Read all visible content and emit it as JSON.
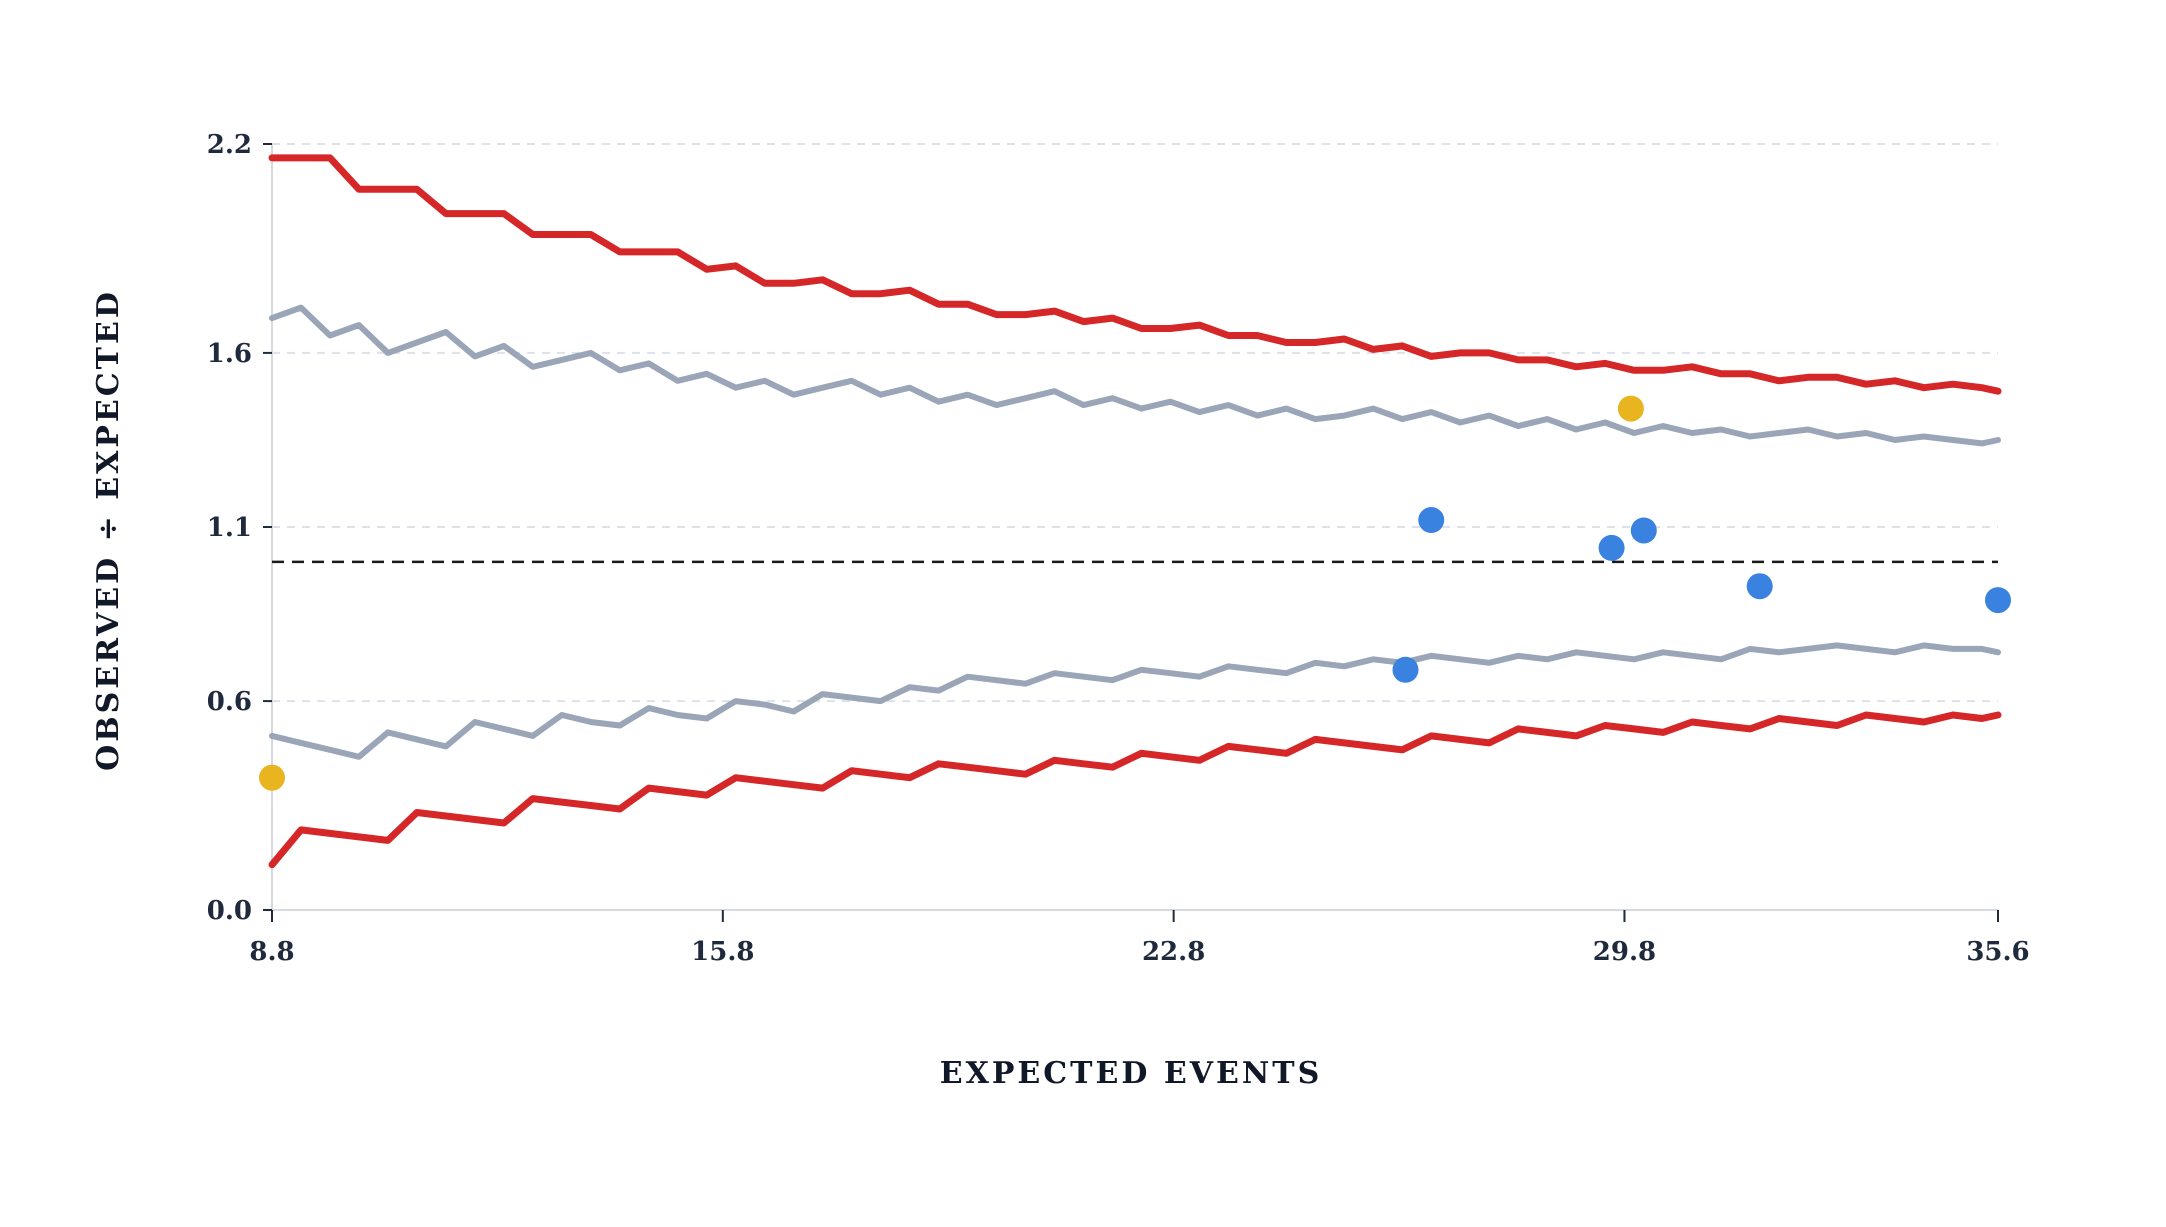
{
  "chart_data": {
    "type": "line",
    "title": "",
    "xlabel": "EXPECTED EVENTS",
    "ylabel": "OBSERVED ÷ EXPECTED",
    "xlim": [
      8.8,
      35.6
    ],
    "ylim": [
      0.0,
      2.2
    ],
    "x_ticks": [
      8.8,
      15.8,
      22.8,
      29.8,
      35.6
    ],
    "y_ticks": [
      0.0,
      0.6,
      1.1,
      1.6,
      2.2
    ],
    "x_tick_labels": [
      "8.8",
      "15.8",
      "22.8",
      "29.8",
      "35.6"
    ],
    "y_tick_labels": [
      "0.0",
      "0.6",
      "1.1",
      "1.6",
      "2.2"
    ],
    "grid": "horizontal dashed",
    "reference_line": {
      "y": 1.0,
      "style": "dashed"
    },
    "series": [
      {
        "role": "outer-upper-limit",
        "color": "#d62728",
        "x": [
          8.8,
          9.25,
          9.7,
          10.15,
          10.6,
          11.05,
          11.5,
          11.95,
          12.4,
          12.85,
          13.3,
          13.75,
          14.2,
          14.65,
          15.1,
          15.55,
          16.0,
          16.45,
          16.9,
          17.35,
          17.8,
          18.25,
          18.7,
          19.15,
          19.6,
          20.05,
          20.5,
          20.95,
          21.4,
          21.85,
          22.3,
          22.75,
          23.2,
          23.65,
          24.1,
          24.55,
          25.0,
          25.45,
          25.9,
          26.35,
          26.8,
          27.25,
          27.7,
          28.15,
          28.6,
          29.05,
          29.5,
          29.95,
          30.4,
          30.85,
          31.3,
          31.75,
          32.2,
          32.65,
          33.1,
          33.55,
          34.0,
          34.45,
          34.9,
          35.35,
          35.6
        ],
        "y": [
          2.16,
          2.16,
          2.16,
          2.07,
          2.07,
          2.07,
          2.0,
          2.0,
          2.0,
          1.94,
          1.94,
          1.94,
          1.89,
          1.89,
          1.89,
          1.84,
          1.85,
          1.8,
          1.8,
          1.81,
          1.77,
          1.77,
          1.78,
          1.74,
          1.74,
          1.71,
          1.71,
          1.72,
          1.69,
          1.7,
          1.67,
          1.67,
          1.68,
          1.65,
          1.65,
          1.63,
          1.63,
          1.64,
          1.61,
          1.62,
          1.59,
          1.6,
          1.6,
          1.58,
          1.58,
          1.56,
          1.57,
          1.55,
          1.55,
          1.56,
          1.54,
          1.54,
          1.52,
          1.53,
          1.53,
          1.51,
          1.52,
          1.5,
          1.51,
          1.5,
          1.49
        ]
      },
      {
        "role": "inner-upper-limit",
        "color": "#9aa5b8",
        "x": [
          8.8,
          9.25,
          9.7,
          10.15,
          10.6,
          11.05,
          11.5,
          11.95,
          12.4,
          12.85,
          13.3,
          13.75,
          14.2,
          14.65,
          15.1,
          15.55,
          16.0,
          16.45,
          16.9,
          17.35,
          17.8,
          18.25,
          18.7,
          19.15,
          19.6,
          20.05,
          20.5,
          20.95,
          21.4,
          21.85,
          22.3,
          22.75,
          23.2,
          23.65,
          24.1,
          24.55,
          25.0,
          25.45,
          25.9,
          26.35,
          26.8,
          27.25,
          27.7,
          28.15,
          28.6,
          29.05,
          29.5,
          29.95,
          30.4,
          30.85,
          31.3,
          31.75,
          32.2,
          32.65,
          33.1,
          33.55,
          34.0,
          34.45,
          34.9,
          35.35,
          35.6
        ],
        "y": [
          1.7,
          1.73,
          1.65,
          1.68,
          1.6,
          1.63,
          1.66,
          1.59,
          1.62,
          1.56,
          1.58,
          1.6,
          1.55,
          1.57,
          1.52,
          1.54,
          1.5,
          1.52,
          1.48,
          1.5,
          1.52,
          1.48,
          1.5,
          1.46,
          1.48,
          1.45,
          1.47,
          1.49,
          1.45,
          1.47,
          1.44,
          1.46,
          1.43,
          1.45,
          1.42,
          1.44,
          1.41,
          1.42,
          1.44,
          1.41,
          1.43,
          1.4,
          1.42,
          1.39,
          1.41,
          1.38,
          1.4,
          1.37,
          1.39,
          1.37,
          1.38,
          1.36,
          1.37,
          1.38,
          1.36,
          1.37,
          1.35,
          1.36,
          1.35,
          1.34,
          1.35
        ]
      },
      {
        "role": "inner-lower-limit",
        "color": "#9aa5b8",
        "x": [
          8.8,
          9.25,
          9.7,
          10.15,
          10.6,
          11.05,
          11.5,
          11.95,
          12.4,
          12.85,
          13.3,
          13.75,
          14.2,
          14.65,
          15.1,
          15.55,
          16.0,
          16.45,
          16.9,
          17.35,
          17.8,
          18.25,
          18.7,
          19.15,
          19.6,
          20.05,
          20.5,
          20.95,
          21.4,
          21.85,
          22.3,
          22.75,
          23.2,
          23.65,
          24.1,
          24.55,
          25.0,
          25.45,
          25.9,
          26.35,
          26.8,
          27.25,
          27.7,
          28.15,
          28.6,
          29.05,
          29.5,
          29.95,
          30.4,
          30.85,
          31.3,
          31.75,
          32.2,
          32.65,
          33.1,
          33.55,
          34.0,
          34.45,
          34.9,
          35.35,
          35.6
        ],
        "y": [
          0.5,
          0.48,
          0.46,
          0.44,
          0.51,
          0.49,
          0.47,
          0.54,
          0.52,
          0.5,
          0.56,
          0.54,
          0.53,
          0.58,
          0.56,
          0.55,
          0.6,
          0.59,
          0.57,
          0.62,
          0.61,
          0.6,
          0.64,
          0.63,
          0.67,
          0.66,
          0.65,
          0.68,
          0.67,
          0.66,
          0.69,
          0.68,
          0.67,
          0.7,
          0.69,
          0.68,
          0.71,
          0.7,
          0.72,
          0.71,
          0.73,
          0.72,
          0.71,
          0.73,
          0.72,
          0.74,
          0.73,
          0.72,
          0.74,
          0.73,
          0.72,
          0.75,
          0.74,
          0.75,
          0.76,
          0.75,
          0.74,
          0.76,
          0.75,
          0.75,
          0.74
        ]
      },
      {
        "role": "outer-lower-limit",
        "color": "#d62728",
        "x": [
          8.8,
          9.25,
          9.7,
          10.15,
          10.6,
          11.05,
          11.5,
          11.95,
          12.4,
          12.85,
          13.3,
          13.75,
          14.2,
          14.65,
          15.1,
          15.55,
          16.0,
          16.45,
          16.9,
          17.35,
          17.8,
          18.25,
          18.7,
          19.15,
          19.6,
          20.05,
          20.5,
          20.95,
          21.4,
          21.85,
          22.3,
          22.75,
          23.2,
          23.65,
          24.1,
          24.55,
          25.0,
          25.45,
          25.9,
          26.35,
          26.8,
          27.25,
          27.7,
          28.15,
          28.6,
          29.05,
          29.5,
          29.95,
          30.4,
          30.85,
          31.3,
          31.75,
          32.2,
          32.65,
          33.1,
          33.55,
          34.0,
          34.45,
          34.9,
          35.35,
          35.6
        ],
        "y": [
          0.13,
          0.23,
          0.22,
          0.21,
          0.2,
          0.28,
          0.27,
          0.26,
          0.25,
          0.32,
          0.31,
          0.3,
          0.29,
          0.35,
          0.34,
          0.33,
          0.38,
          0.37,
          0.36,
          0.35,
          0.4,
          0.39,
          0.38,
          0.42,
          0.41,
          0.4,
          0.39,
          0.43,
          0.42,
          0.41,
          0.45,
          0.44,
          0.43,
          0.47,
          0.46,
          0.45,
          0.49,
          0.48,
          0.47,
          0.46,
          0.5,
          0.49,
          0.48,
          0.52,
          0.51,
          0.5,
          0.53,
          0.52,
          0.51,
          0.54,
          0.53,
          0.52,
          0.55,
          0.54,
          0.53,
          0.56,
          0.55,
          0.54,
          0.56,
          0.55,
          0.56
        ]
      }
    ],
    "points": [
      {
        "x": 8.8,
        "y": 0.38,
        "color": "#e8b420"
      },
      {
        "x": 29.9,
        "y": 1.44,
        "color": "#e8b420"
      },
      {
        "x": 26.8,
        "y": 1.12,
        "color": "#3a82e0"
      },
      {
        "x": 29.6,
        "y": 1.04,
        "color": "#3a82e0"
      },
      {
        "x": 30.1,
        "y": 1.09,
        "color": "#3a82e0"
      },
      {
        "x": 31.9,
        "y": 0.93,
        "color": "#3a82e0"
      },
      {
        "x": 35.6,
        "y": 0.89,
        "color": "#3a82e0"
      },
      {
        "x": 26.4,
        "y": 0.69,
        "color": "#3a82e0"
      }
    ],
    "legend": "none"
  }
}
